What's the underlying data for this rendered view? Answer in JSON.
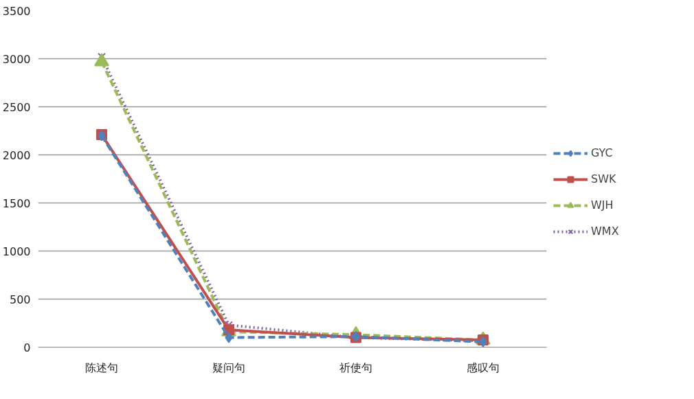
{
  "chart_data": {
    "type": "line",
    "categories": [
      "陈述句",
      "疑问句",
      "祈使句",
      "感叹句"
    ],
    "series": [
      {
        "name": "GYC",
        "color": "#4f81bd",
        "values": [
          2200,
          100,
          110,
          55
        ],
        "marker": "diamond",
        "line_style": "dashed"
      },
      {
        "name": "SWK",
        "color": "#c0504d",
        "values": [
          2210,
          180,
          100,
          75
        ],
        "marker": "square",
        "line_style": "solid"
      },
      {
        "name": "WJH",
        "color": "#9bbb59",
        "values": [
          2970,
          160,
          130,
          75
        ],
        "marker": "triangle",
        "line_style": "dashed"
      },
      {
        "name": "WMX",
        "color": "#8064a2",
        "values": [
          3020,
          230,
          100,
          65
        ],
        "marker": "cross",
        "line_style": "dotted"
      }
    ],
    "ylim": [
      0,
      3500
    ],
    "yticks": [
      0,
      500,
      1000,
      1500,
      2000,
      2500,
      3000,
      3500
    ],
    "grid": "y",
    "legend": "right"
  }
}
